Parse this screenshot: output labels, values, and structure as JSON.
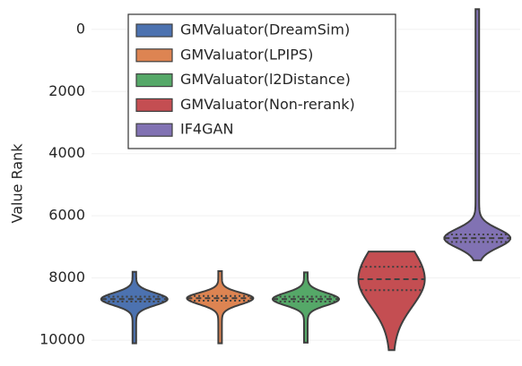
{
  "chart_data": {
    "type": "violin",
    "y_label": "Value Rank",
    "ylim": [
      10400,
      -800
    ],
    "yticks": [
      0,
      2000,
      4000,
      6000,
      8000,
      10000
    ],
    "grid": true,
    "legend": "upper left",
    "series": [
      {
        "name": "GMValuator(DreamSim)",
        "color": "#4c72b0",
        "min": 7800,
        "q1": 8600,
        "median": 8680,
        "q3": 8760,
        "max": 10100
      },
      {
        "name": "GMValuator(LPIPS)",
        "color": "#dd8452",
        "min": 7780,
        "q1": 8580,
        "median": 8650,
        "q3": 8730,
        "max": 10100
      },
      {
        "name": "GMValuator(l2Distance)",
        "color": "#55a868",
        "min": 7820,
        "q1": 8600,
        "median": 8680,
        "q3": 8760,
        "max": 10080
      },
      {
        "name": "GMValuator(Non-rerank)",
        "color": "#c44e52",
        "min": 7150,
        "q1": 7640,
        "median": 8040,
        "q3": 8390,
        "max": 10320
      },
      {
        "name": "IF4GAN",
        "color": "#8172b3",
        "min": -650,
        "q1": 6600,
        "median": 6720,
        "q3": 6840,
        "max": 7430
      }
    ]
  }
}
